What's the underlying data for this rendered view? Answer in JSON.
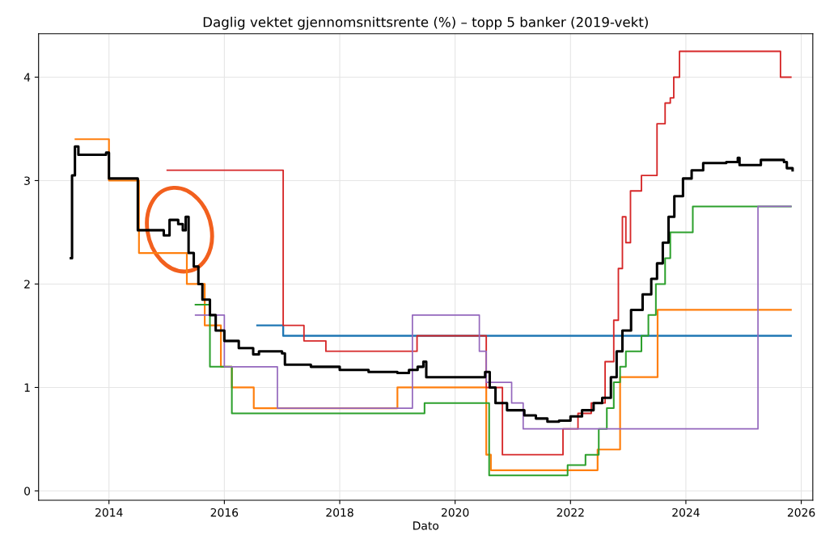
{
  "chart_data": {
    "type": "step",
    "title": "Daglig vektet gjennomsnittsrente (%) – topp 5 banker (2019-vekt)",
    "xlabel": "Dato",
    "xlim": [
      2012.78,
      2026.2
    ],
    "ylim": [
      -0.09,
      4.42
    ],
    "xticks": [
      2014,
      2016,
      2018,
      2020,
      2022,
      2024,
      2026
    ],
    "yticks": [
      0,
      1,
      2,
      3,
      4
    ],
    "grid": true,
    "series": [
      {
        "color": "#1f77b4",
        "x": [
          2016.57,
          2017.02,
          2025.82
        ],
        "values": [
          1.6,
          1.5,
          1.5
        ]
      },
      {
        "color": "#ff7f0e",
        "x": [
          2013.42,
          2014.0,
          2014.52,
          2015.35,
          2015.66,
          2015.94,
          2016.13,
          2016.51,
          2019.0,
          2020.54,
          2020.62,
          2022.47,
          2022.86,
          2023.51,
          2025.82
        ],
        "values": [
          3.4,
          3.0,
          2.3,
          2.0,
          1.6,
          1.2,
          1.0,
          0.8,
          1.0,
          0.35,
          0.2,
          0.4,
          1.1,
          1.75,
          1.75
        ]
      },
      {
        "color": "#2ca02c",
        "x": [
          2015.5,
          2015.75,
          2016.13,
          2019.47,
          2020.59,
          2021.95,
          2022.26,
          2022.49,
          2022.63,
          2022.75,
          2022.86,
          2022.96,
          2023.23,
          2023.35,
          2023.48,
          2023.64,
          2023.73,
          2024.12,
          2025.82
        ],
        "values": [
          1.8,
          1.2,
          0.75,
          0.85,
          0.15,
          0.25,
          0.35,
          0.6,
          0.8,
          1.05,
          1.2,
          1.35,
          1.5,
          1.7,
          2.0,
          2.25,
          2.5,
          2.75,
          2.75
        ]
      },
      {
        "color": "#d62728",
        "x": [
          2015.01,
          2017.02,
          2017.38,
          2017.76,
          2019.34,
          2020.54,
          2020.82,
          2021.87,
          2022.13,
          2022.36,
          2022.6,
          2022.75,
          2022.83,
          2022.9,
          2022.96,
          2023.04,
          2023.23,
          2023.5,
          2023.64,
          2023.73,
          2023.79,
          2023.89,
          2025.64,
          2025.82
        ],
        "values": [
          3.1,
          1.6,
          1.45,
          1.35,
          1.5,
          1.0,
          0.35,
          0.6,
          0.75,
          0.85,
          1.25,
          1.65,
          2.15,
          2.65,
          2.4,
          2.9,
          3.05,
          3.55,
          3.75,
          3.8,
          4.0,
          4.25,
          4.0,
          4.0
        ]
      },
      {
        "color": "#9467bd",
        "x": [
          2015.5,
          2016.0,
          2016.92,
          2019.26,
          2020.42,
          2020.54,
          2020.98,
          2021.18,
          2025.25,
          2025.82
        ],
        "values": [
          1.7,
          1.2,
          0.8,
          1.7,
          1.35,
          1.05,
          0.85,
          0.6,
          2.75,
          2.75
        ]
      },
      {
        "color": "#000000",
        "x": [
          2013.34,
          2013.36,
          2013.41,
          2013.47,
          2013.95,
          2014.0,
          2014.5,
          2014.95,
          2015.05,
          2015.2,
          2015.28,
          2015.33,
          2015.38,
          2015.47,
          2015.55,
          2015.62,
          2015.75,
          2015.85,
          2016.0,
          2016.25,
          2016.5,
          2016.6,
          2017.0,
          2017.05,
          2017.5,
          2018.0,
          2018.5,
          2019.0,
          2019.2,
          2019.35,
          2019.45,
          2019.5,
          2020.5,
          2020.52,
          2020.6,
          2020.7,
          2020.9,
          2021.2,
          2021.4,
          2021.6,
          2021.8,
          2022.0,
          2022.2,
          2022.4,
          2022.55,
          2022.7,
          2022.8,
          2022.9,
          2023.05,
          2023.25,
          2023.4,
          2023.5,
          2023.6,
          2023.7,
          2023.8,
          2023.95,
          2024.1,
          2024.3,
          2024.7,
          2024.9,
          2024.93,
          2025.2,
          2025.3,
          2025.7,
          2025.75,
          2025.85
        ],
        "values": [
          2.25,
          3.05,
          3.33,
          3.25,
          3.27,
          3.02,
          2.52,
          2.47,
          2.62,
          2.58,
          2.52,
          2.65,
          2.3,
          2.17,
          2.0,
          1.85,
          1.7,
          1.55,
          1.45,
          1.38,
          1.32,
          1.35,
          1.33,
          1.22,
          1.2,
          1.17,
          1.15,
          1.14,
          1.17,
          1.2,
          1.25,
          1.1,
          1.1,
          1.15,
          1.0,
          0.85,
          0.78,
          0.73,
          0.7,
          0.67,
          0.68,
          0.72,
          0.78,
          0.85,
          0.9,
          1.1,
          1.35,
          1.55,
          1.75,
          1.9,
          2.05,
          2.2,
          2.4,
          2.65,
          2.85,
          3.02,
          3.1,
          3.17,
          3.18,
          3.22,
          3.15,
          3.15,
          3.2,
          3.18,
          3.12,
          3.1
        ]
      }
    ]
  }
}
